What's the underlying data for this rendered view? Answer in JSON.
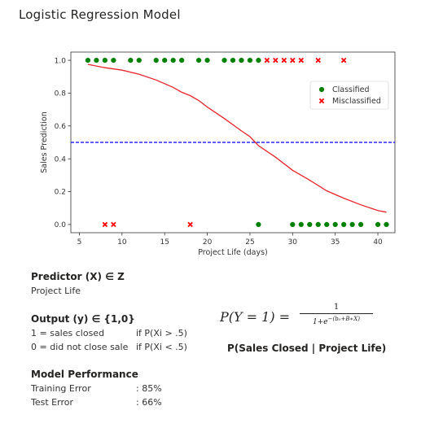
{
  "page": {
    "title": "Logistic Regression Model"
  },
  "predictor": {
    "title": "Predictor (X) ∈ Z",
    "value": "Project Life"
  },
  "output": {
    "title": "Output (y) ∈ {1,0}",
    "rows": [
      {
        "label": "1 = sales closed",
        "condition": "if P(Xi > .5)"
      },
      {
        "label": "0 = did not close sale",
        "condition": "if P(Xi < .5)"
      }
    ]
  },
  "formula": {
    "lhs": "P(Y = 1) =",
    "numerator": "1",
    "denominator_base": "1+e",
    "denominator_exp": "−(b₀+B∗X)"
  },
  "formula_caption": "P(Sales Closed | Project Life)",
  "performance": {
    "title": "Model Performance",
    "rows": [
      {
        "label": "Training Error",
        "value": ": 85%"
      },
      {
        "label": "Test Error",
        "value": ": 66%"
      }
    ]
  },
  "colors": {
    "classified": "#008000",
    "misclassified": "#ff0000",
    "curve": "#e8242b",
    "threshold": "#0000ff",
    "axis": "#333333"
  },
  "chart_data": {
    "type": "scatter",
    "xlabel": "Project Life (days)",
    "ylabel": "Sales Prediction",
    "xlim": [
      4,
      42
    ],
    "ylim": [
      -0.05,
      1.05
    ],
    "xticks": [
      5,
      10,
      15,
      20,
      25,
      30,
      35,
      40
    ],
    "yticks": [
      0.0,
      0.2,
      0.4,
      0.6,
      0.8,
      1.0
    ],
    "xtick_labels": [
      "5",
      "10",
      "15",
      "20",
      "25",
      "30",
      "35",
      "40"
    ],
    "ytick_labels": [
      "0.0",
      "0.2",
      "0.4",
      "0.6",
      "0.8",
      "1.0"
    ],
    "legend_position": "right",
    "legend": [
      "Classified",
      "Misclassified"
    ],
    "threshold": 0.5,
    "series": [
      {
        "name": "Classified",
        "marker": "circle",
        "points": [
          [
            6,
            1
          ],
          [
            7,
            1
          ],
          [
            8,
            1
          ],
          [
            9,
            1
          ],
          [
            11,
            1
          ],
          [
            12,
            1
          ],
          [
            14,
            1
          ],
          [
            15,
            1
          ],
          [
            16,
            1
          ],
          [
            17,
            1
          ],
          [
            19,
            1
          ],
          [
            20,
            1
          ],
          [
            22,
            1
          ],
          [
            23,
            1
          ],
          [
            24,
            1
          ],
          [
            25,
            1
          ],
          [
            26,
            1
          ],
          [
            26,
            0
          ],
          [
            30,
            0
          ],
          [
            31,
            0
          ],
          [
            32,
            0
          ],
          [
            33,
            0
          ],
          [
            34,
            0
          ],
          [
            35,
            0
          ],
          [
            36,
            0
          ],
          [
            37,
            0
          ],
          [
            38,
            0
          ],
          [
            40,
            0
          ],
          [
            41,
            0
          ]
        ]
      },
      {
        "name": "Misclassified",
        "marker": "x",
        "points": [
          [
            27,
            1
          ],
          [
            28,
            1
          ],
          [
            29,
            1
          ],
          [
            30,
            1
          ],
          [
            31,
            1
          ],
          [
            33,
            1
          ],
          [
            36,
            1
          ],
          [
            8,
            0
          ],
          [
            9,
            0
          ],
          [
            18,
            0
          ]
        ]
      },
      {
        "name": "Probability",
        "type": "line",
        "points": [
          [
            6,
            0.975
          ],
          [
            8,
            0.955
          ],
          [
            10,
            0.94
          ],
          [
            12,
            0.915
          ],
          [
            14,
            0.88
          ],
          [
            16,
            0.835
          ],
          [
            17,
            0.805
          ],
          [
            18,
            0.785
          ],
          [
            19,
            0.755
          ],
          [
            20,
            0.715
          ],
          [
            22,
            0.645
          ],
          [
            24,
            0.57
          ],
          [
            25,
            0.535
          ],
          [
            26,
            0.48
          ],
          [
            28,
            0.41
          ],
          [
            30,
            0.33
          ],
          [
            32,
            0.27
          ],
          [
            34,
            0.205
          ],
          [
            36,
            0.16
          ],
          [
            38,
            0.12
          ],
          [
            40,
            0.085
          ],
          [
            41,
            0.075
          ]
        ]
      }
    ]
  }
}
